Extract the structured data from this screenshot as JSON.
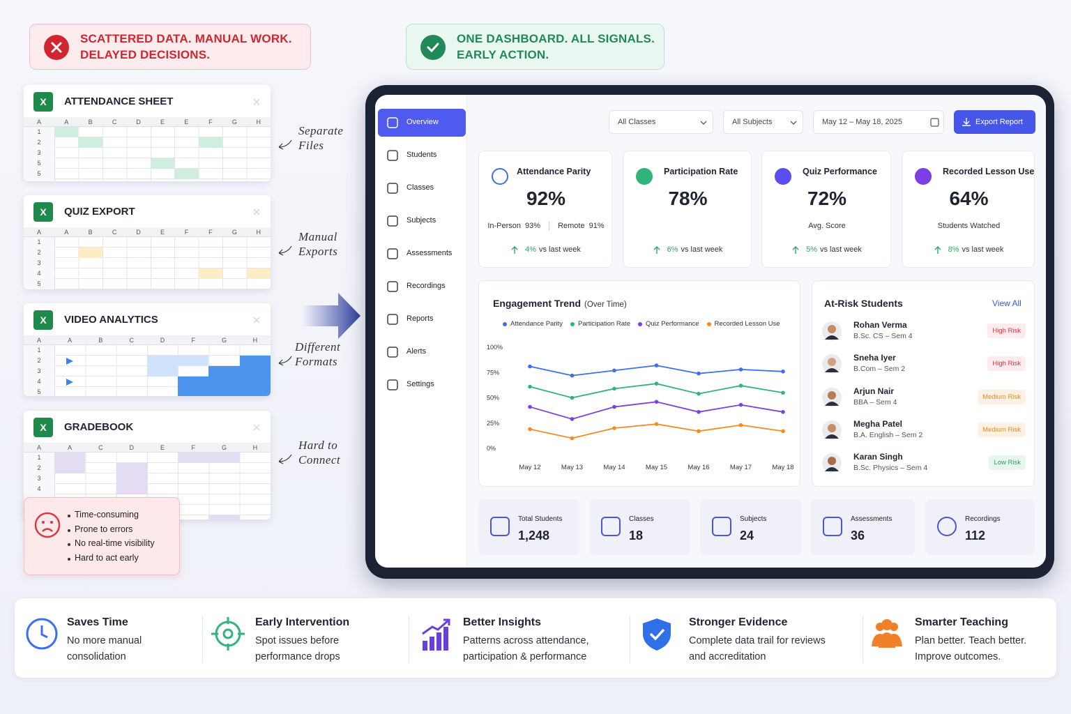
{
  "banners": {
    "problem": [
      "SCATTERED DATA. MANUAL WORK.",
      "DELAYED DECISIONS."
    ],
    "solution": [
      "ONE DASHBOARD. ALL SIGNALS.",
      "EARLY ACTION."
    ]
  },
  "sheets": [
    {
      "icon": "X",
      "title": "ATTENDANCE SHEET",
      "columns": [
        "A",
        "A",
        "B",
        "C",
        "D",
        "E",
        "E",
        "F",
        "G",
        "H"
      ],
      "rows": [
        "1",
        "2",
        "3",
        "5",
        "5"
      ],
      "note": [
        "Separate",
        "Files"
      ]
    },
    {
      "icon": "X",
      "title": "QUIZ EXPORT",
      "columns": [
        "A",
        "A",
        "B",
        "C",
        "D",
        "E",
        "F",
        "F",
        "G",
        "H"
      ],
      "rows": [
        "1",
        "2",
        "3",
        "4",
        "5"
      ],
      "note": [
        "Manual",
        "Exports"
      ]
    },
    {
      "icon": "X",
      "title": "VIDEO ANALYTICS",
      "columns": [
        "A",
        "A",
        "B",
        "C",
        "D",
        "F",
        "G",
        "H"
      ],
      "rows": [
        "1",
        "2",
        "3",
        "4",
        "5"
      ],
      "note": [
        "Different",
        "Formats"
      ]
    },
    {
      "icon": "X",
      "title": "GRADEBOOK",
      "columns": [
        "A",
        "A",
        "C",
        "D",
        "E",
        "F",
        "G",
        "H"
      ],
      "rows": [
        "1",
        "2",
        "3",
        "4"
      ],
      "note": [
        "Hard to",
        "Connect"
      ]
    }
  ],
  "pain_points": [
    "Time-consuming",
    "Prone to errors",
    "No real-time visibility",
    "Hard to act early"
  ],
  "dashboard": {
    "nav": [
      "Overview",
      "Students",
      "Classes",
      "Subjects",
      "Assessments",
      "Recordings",
      "Reports",
      "Alerts",
      "Settings"
    ],
    "filters": [
      "All Classes",
      "All Subjects",
      "May 12 – May 18, 2025"
    ],
    "export": "Export Report",
    "kpis": [
      {
        "title": "Attendance Parity",
        "value": "92%",
        "details": [
          "In-Person",
          "93%",
          "Remote",
          "91%"
        ],
        "change": "4%",
        "change_text": "vs last week",
        "color": "#3b6ff0"
      },
      {
        "title": "Participation Rate",
        "value": "78%",
        "change": "6%",
        "change_text": "vs last week",
        "color": "#2fb47c"
      },
      {
        "title": "Quiz Performance",
        "value": "72%",
        "caption": "Avg. Score",
        "change": "5%",
        "change_text": "vs last week",
        "color": "#5b4ef0"
      },
      {
        "title": "Recorded Lesson Use",
        "value": "64%",
        "caption": "Students Watched",
        "change": "8%",
        "change_text": "vs last week",
        "color": "#7b3fe4"
      }
    ],
    "trend": {
      "type": "line",
      "title": "Engagement Trend",
      "subtitle": "(Over Time)",
      "categories": [
        "May 12",
        "May 13",
        "May 14",
        "May 15",
        "May 16",
        "May 17",
        "May 18"
      ],
      "series": [
        {
          "name": "Attendance Parity",
          "color": "#3b6ff0",
          "values": [
            81,
            72,
            77,
            82,
            74,
            78,
            76
          ]
        },
        {
          "name": "Participation Rate",
          "color": "#2fb47c",
          "values": [
            61,
            50,
            59,
            64,
            54,
            62,
            55
          ]
        },
        {
          "name": "Quiz Performance",
          "color": "#7b3fe4",
          "values": [
            41,
            29,
            41,
            46,
            36,
            43,
            36
          ]
        },
        {
          "name": "Recorded Lesson Use",
          "color": "#f58a1f",
          "values": [
            19,
            10,
            20,
            24,
            17,
            23,
            17
          ]
        }
      ],
      "ylim": [
        0,
        100
      ],
      "yticks": [
        {
          "value": 0,
          "label": "0%"
        },
        {
          "value": 25,
          "label": "25%"
        },
        {
          "value": 50,
          "label": "50%"
        },
        {
          "value": 75,
          "label": "75%"
        },
        {
          "value": 100,
          "label": "100%"
        }
      ],
      "grid": false
    },
    "at_risk": {
      "title": "At-Risk Students",
      "link": "View All",
      "students": [
        {
          "name": "Rohan Verma",
          "program": "B.Sc. CS – Sem 4",
          "risk": "High Risk",
          "color": "#e0323c",
          "bg": "#fdecee"
        },
        {
          "name": "Sneha Iyer",
          "program": "B.Com – Sem 2",
          "risk": "High Risk",
          "color": "#e0323c",
          "bg": "#fdecee"
        },
        {
          "name": "Arjun Nair",
          "program": "BBA – Sem 4",
          "risk": "Medium Risk",
          "color": "#e58a1f",
          "bg": "#fdf1e4"
        },
        {
          "name": "Megha Patel",
          "program": "B.A. English – Sem 2",
          "risk": "Medium Risk",
          "color": "#e58a1f",
          "bg": "#fdf1e4"
        },
        {
          "name": "Karan Singh",
          "program": "B.Sc. Physics – Sem 4",
          "risk": "Low Risk",
          "color": "#2e9d5e",
          "bg": "#e8f7ee"
        }
      ]
    },
    "stats": [
      {
        "label": "Total Students",
        "value": "1,248"
      },
      {
        "label": "Classes",
        "value": "18"
      },
      {
        "label": "Subjects",
        "value": "24"
      },
      {
        "label": "Assessments",
        "value": "36"
      },
      {
        "label": "Recordings",
        "value": "112"
      }
    ]
  },
  "benefits": [
    {
      "title": "Saves Time",
      "text": [
        "No more manual",
        "consolidation"
      ],
      "color": "#3b6ff0"
    },
    {
      "title": "Early Intervention",
      "text": [
        "Spot issues before",
        "performance drops"
      ],
      "color": "#2fb47c"
    },
    {
      "title": "Better Insights",
      "text": [
        "Patterns across attendance,",
        "participation & performance"
      ],
      "color": "#6a3fe0"
    },
    {
      "title": "Stronger Evidence",
      "text": [
        "Complete data trail for reviews",
        "and accreditation"
      ],
      "color": "#2f6fe8"
    },
    {
      "title": "Smarter Teaching",
      "text": [
        "Plan better. Teach better.",
        "Improve outcomes."
      ],
      "color": "#f0812a"
    }
  ]
}
